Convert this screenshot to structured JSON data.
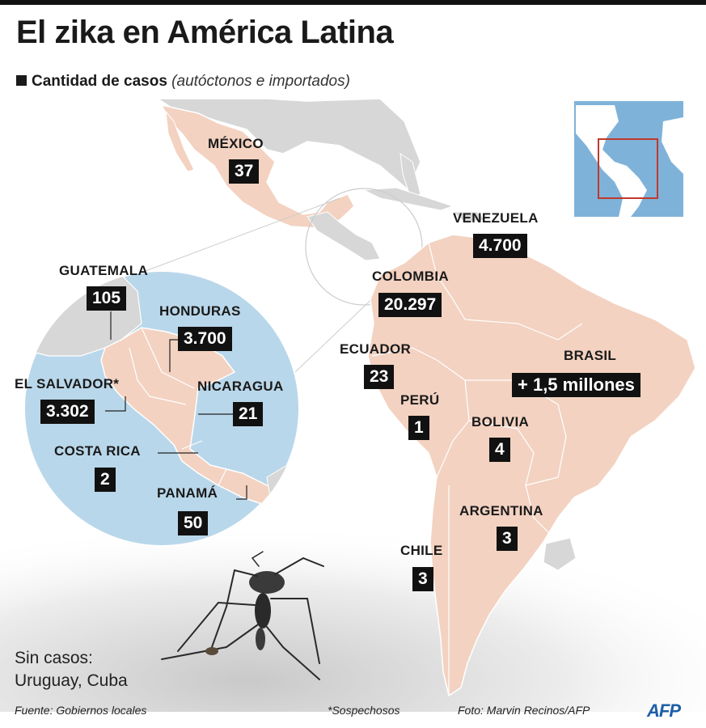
{
  "title": "El zika en América Latina",
  "subtitle": {
    "bold": "Cantidad de casos",
    "italic": "(autóctonos e importados)"
  },
  "countries": {
    "mexico": {
      "name": "MÉXICO",
      "cases": "37"
    },
    "venezuela": {
      "name": "VENEZUELA",
      "cases": "4.700"
    },
    "colombia": {
      "name": "COLOMBIA",
      "cases": "20.297"
    },
    "ecuador": {
      "name": "ECUADOR",
      "cases": "23"
    },
    "brasil": {
      "name": "BRASIL",
      "cases": "+ 1,5 millones"
    },
    "peru": {
      "name": "PERÚ",
      "cases": "1"
    },
    "bolivia": {
      "name": "BOLIVIA",
      "cases": "4"
    },
    "argentina": {
      "name": "ARGENTINA",
      "cases": "3"
    },
    "chile": {
      "name": "CHILE",
      "cases": "3"
    },
    "guatemala": {
      "name": "GUATEMALA",
      "cases": "105"
    },
    "honduras": {
      "name": "HONDURAS",
      "cases": "3.700"
    },
    "el_salvador": {
      "name": "EL SALVADOR*",
      "cases": "3.302"
    },
    "nicaragua": {
      "name": "NICARAGUA",
      "cases": "21"
    },
    "costa_rica": {
      "name": "COSTA RICA",
      "cases": "2"
    },
    "panama": {
      "name": "PANAMÁ",
      "cases": "50"
    }
  },
  "no_cases": {
    "label": "Sin casos:",
    "countries": "Uruguay, Cuba"
  },
  "footer": {
    "source": "Fuente: Gobiernos locales",
    "note": "*Sospechosos",
    "photo": "Foto: Marvin Recinos/AFP",
    "logo": "AFP"
  },
  "colors": {
    "land_highlight": "#f3d2c1",
    "land_other": "#d7d7d7",
    "sea": "#b9d7ea",
    "label_bg": "#111111",
    "locator_frame": "#c0392b",
    "logo": "#1e5fa8"
  }
}
